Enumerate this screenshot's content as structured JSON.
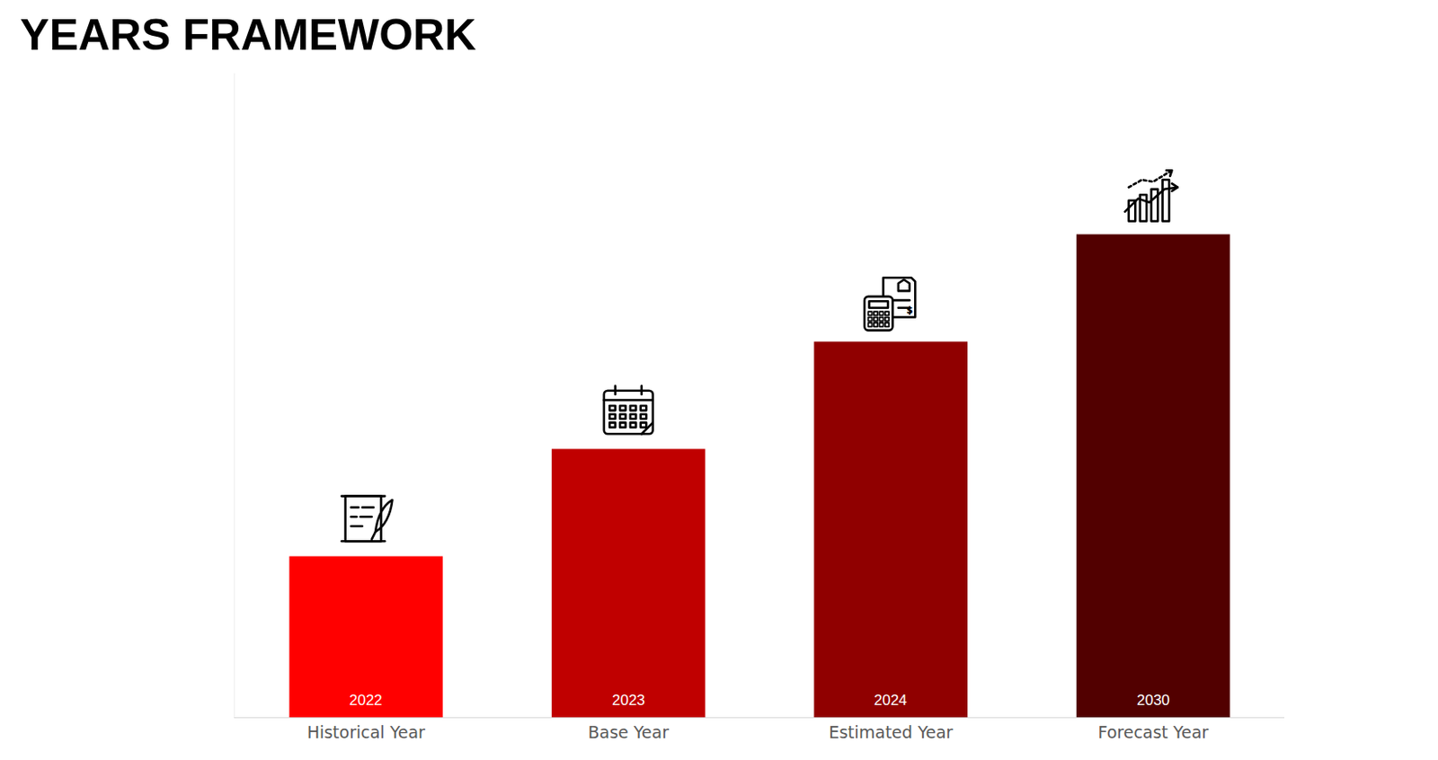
{
  "chart_data": {
    "type": "bar",
    "title": "YEARS FRAMEWORK",
    "categories": [
      "Historical Year",
      "Base Year",
      "Estimated Year",
      "Forecast Year"
    ],
    "values": [
      1.5,
      2.5,
      3.5,
      4.5
    ],
    "colors": [
      "#ff0000",
      "#c00000",
      "#900000",
      "#520000"
    ],
    "annotations": [
      "2022",
      "2023",
      "2024",
      "2030"
    ],
    "ylim": [
      0,
      6
    ],
    "grid": false,
    "tick_labels": "x"
  }
}
